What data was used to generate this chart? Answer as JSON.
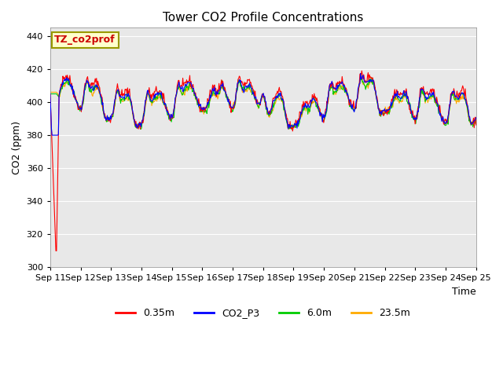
{
  "title": "Tower CO2 Profile Concentrations",
  "xlabel": "Time",
  "ylabel": "CO2 (ppm)",
  "ylim": [
    300,
    445
  ],
  "yticks": [
    300,
    320,
    340,
    360,
    380,
    400,
    420,
    440
  ],
  "legend_label": "TZ_co2prof",
  "series_labels": [
    "0.35m",
    "CO2_P3",
    "6.0m",
    "23.5m"
  ],
  "series_colors": [
    "#ff0000",
    "#0000ff",
    "#00cc00",
    "#ffaa00"
  ],
  "background_color": "#ffffff",
  "plot_bg_color": "#e8e8e8",
  "n_days": 14,
  "xtick_positions": [
    0,
    1,
    2,
    3,
    4,
    5,
    6,
    7,
    8,
    9,
    10,
    11,
    12,
    13,
    14
  ],
  "xtick_labels": [
    "Sep 11",
    "Sep 12",
    "Sep 13",
    "Sep 14",
    "Sep 15",
    "Sep 16",
    "Sep 17",
    "Sep 18",
    "Sep 19",
    "Sep 20",
    "Sep 21",
    "Sep 22",
    "Sep 23",
    "Sep 24",
    "Sep 25"
  ],
  "seed": 42
}
